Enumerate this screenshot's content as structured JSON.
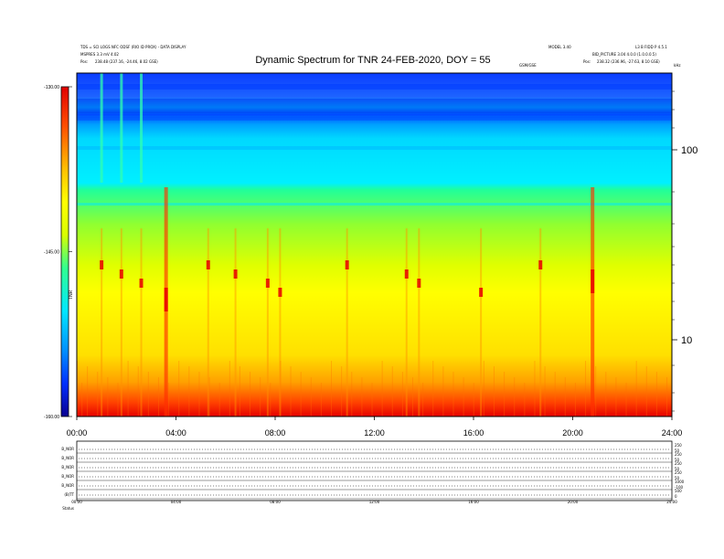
{
  "header": {
    "title": "Dynamic Spectrum for TNR 24-FEB-2020, DOY = 55",
    "meta_left_1": "TDS = SCI LOGS NFC ODSF (RIO ID PROX) - DATA DISPLAY",
    "meta_left_2": "MSPRES 3.3 mV 4.02",
    "meta_left_3_label": "Pos:",
    "meta_left_3_value": "238.48 (237.16, -24.46, 8.02 GSE)",
    "meta_center": "GSM/GSE",
    "meta_right_top": "MODEL 3.40",
    "meta_right_top2": "L3 B FIDD P 4.5.1",
    "meta_right_2": "BID_PICTURE 3.04 4.0.0 (1.0.0.0.5)",
    "meta_right_3_label": "Pos:",
    "meta_right_3_value": "238.32 (236.96, -27.63, 8.10 GSE)",
    "unit_label": "kHz"
  },
  "colorbar": {
    "label": "TNR",
    "ticks": [
      "-130.00",
      "-145.00",
      "-160.00"
    ]
  },
  "chart_data": {
    "type": "heatmap",
    "title": "Dynamic Spectrum for TNR 24-FEB-2020, DOY = 55",
    "x_ticks": [
      "00:00",
      "04:00",
      "08:00",
      "12:00",
      "16:00",
      "20:00",
      "24:00"
    ],
    "y_ticks": [
      "100",
      "10"
    ],
    "y_scale": "log",
    "y_unit": "kHz",
    "colorbar_range": [
      -160.0,
      -130.0
    ],
    "colormap": [
      "#0a0090",
      "#0030ff",
      "#0090ff",
      "#00e6ff",
      "#30ff90",
      "#d8ff00",
      "#ffff00",
      "#ffc000",
      "#ff5000",
      "#e00000"
    ],
    "bursts_hours": [
      1.0,
      1.8,
      2.6,
      3.6,
      5.3,
      6.4,
      7.7,
      8.2,
      10.9,
      13.3,
      13.8,
      16.3,
      18.7,
      20.8
    ],
    "panel_labels": [
      "B_NOR",
      "B_NOR",
      "B_NOR",
      "B_NOR",
      "B_NOR",
      "(B)TT",
      "Status"
    ],
    "panel_right_ticks": [
      [
        "250",
        "50"
      ],
      [
        "250",
        "50"
      ],
      [
        "250",
        "50"
      ],
      [
        "250",
        "50"
      ],
      [
        "1000",
        "-100"
      ],
      [
        "500",
        "0"
      ]
    ],
    "panel_x_ticks": [
      "00:00",
      "04:00",
      "08:00",
      "12:00",
      "16:00",
      "20:00",
      "24:00"
    ]
  }
}
